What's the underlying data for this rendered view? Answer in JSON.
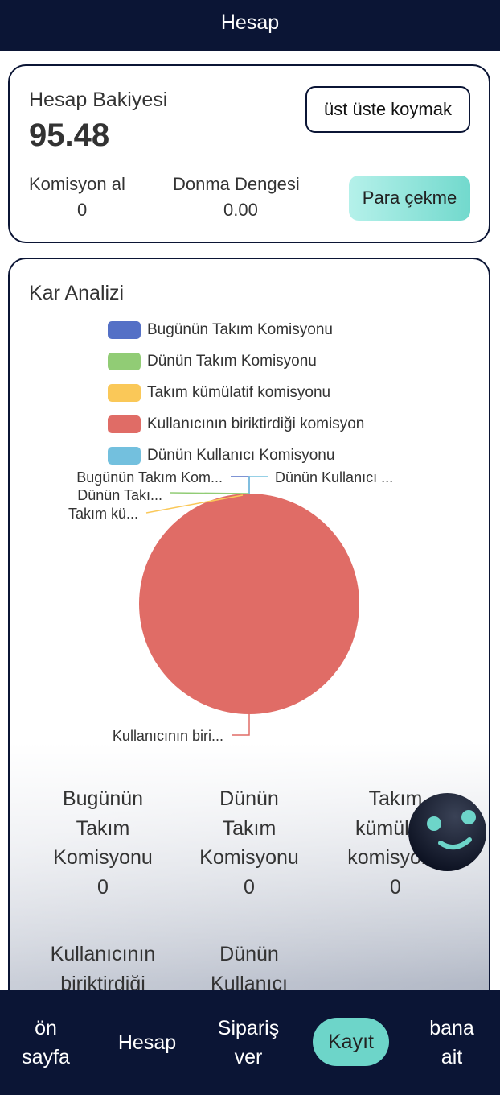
{
  "header": {
    "title": "Hesap"
  },
  "account": {
    "balance_label": "Hesap Bakiyesi",
    "balance": "95.48",
    "stack_button": "üst üste koymak",
    "commission_label": "Komisyon al",
    "commission_value": "0",
    "frozen_label": "Donma Dengesi",
    "frozen_value": "0.00",
    "withdraw_button": "Para çekme"
  },
  "analysis": {
    "title": "Kar Analizi"
  },
  "chart_data": {
    "type": "pie",
    "categories": [
      "Bugünün Takım Komisyonu",
      "Dünün Takım Komisyonu",
      "Takım kümülatif komisyonu",
      "Kullanıcının biriktirdiği komisyon",
      "Dünün Kullanıcı Komisyonu"
    ],
    "values": [
      0,
      0,
      0,
      100,
      0
    ],
    "colors": [
      "#5470c6",
      "#91cc75",
      "#fac858",
      "#e06c66",
      "#73c0de"
    ],
    "slice_labels": [
      "Bugünün Takım Kom...",
      "Dünün Takı...",
      "Takım kü...",
      "Kullanıcının biri...",
      "Dünün Kullanıcı ..."
    ],
    "legend_placement": "top"
  },
  "stats": [
    {
      "lines": [
        "Bugünün",
        "Takım",
        "Komisyonu"
      ],
      "value": "0"
    },
    {
      "lines": [
        "Dünün",
        "Takım",
        "Komisyonu"
      ],
      "value": "0"
    },
    {
      "lines": [
        "Takım",
        "kümülatif",
        "komisyonu"
      ],
      "value": "0"
    },
    {
      "lines": [
        "Kullanıcının",
        "biriktirdiği"
      ]
    },
    {
      "lines": [
        "Dünün",
        "Kullanıcı"
      ]
    }
  ],
  "nav": [
    {
      "l1": "ön",
      "l2": "sayfa"
    },
    {
      "l1": "Hesap"
    },
    {
      "l1": "Sipariş",
      "l2": "ver"
    },
    {
      "l1": "Kayıt",
      "active": true
    },
    {
      "l1": "bana",
      "l2": "ait"
    }
  ]
}
